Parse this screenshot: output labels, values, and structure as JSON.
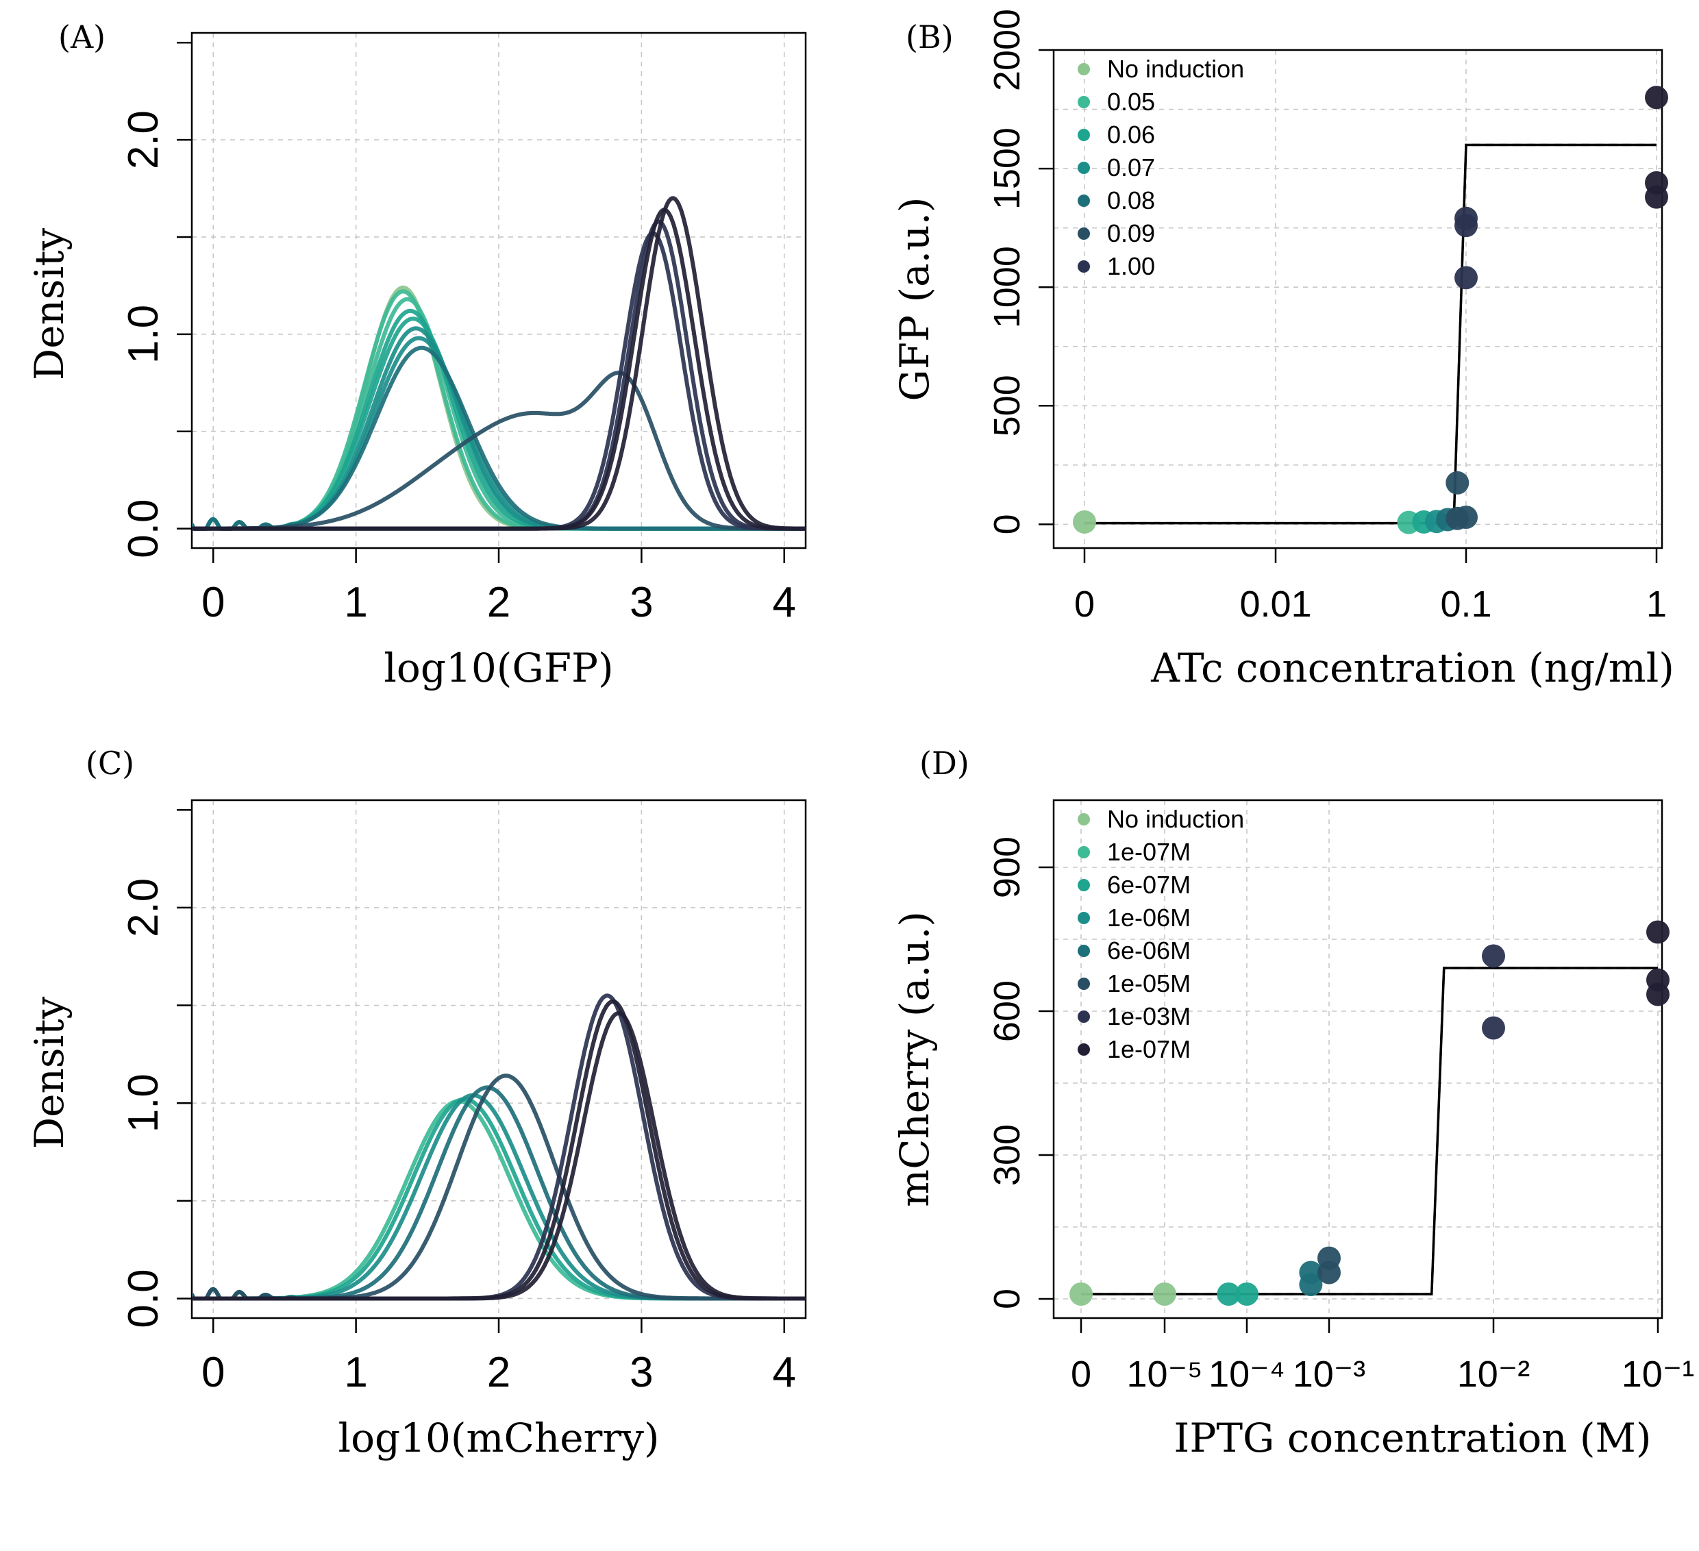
{
  "palette": [
    "#8cc58d",
    "#3dba96",
    "#1ea58f",
    "#1c8e8a",
    "#1d6f79",
    "#284f64",
    "#2b3350",
    "#221f34"
  ],
  "chart_data": [
    {
      "panel": "(A)",
      "type": "line",
      "xlabel": "log10(GFP)",
      "ylabel": "Density",
      "xlim": [
        -0.15,
        4.15
      ],
      "ylim": [
        -0.1,
        2.55
      ],
      "xticks": [
        "0",
        "1",
        "2",
        "3",
        "4"
      ],
      "yticks": [
        "0.0",
        "1.0",
        "2.0"
      ],
      "series": [
        {
          "group": 0,
          "peak": 1.33,
          "sd": 0.26,
          "height": 1.24
        },
        {
          "group": 1,
          "peak": 1.33,
          "sd": 0.27,
          "height": 1.22
        },
        {
          "group": 1,
          "peak": 1.36,
          "sd": 0.28,
          "height": 1.18
        },
        {
          "group": 2,
          "peak": 1.38,
          "sd": 0.29,
          "height": 1.12
        },
        {
          "group": 2,
          "peak": 1.4,
          "sd": 0.3,
          "height": 1.08
        },
        {
          "group": 3,
          "peak": 1.42,
          "sd": 0.3,
          "height": 1.03
        },
        {
          "group": 3,
          "peak": 1.44,
          "sd": 0.31,
          "height": 0.98
        },
        {
          "group": 4,
          "peak": 1.46,
          "sd": 0.32,
          "height": 0.93
        },
        {
          "group": 5,
          "peak": 2.9,
          "sd": 0.22,
          "height": 0.62,
          "shoulder": 0.4
        },
        {
          "group": 6,
          "peak": 3.08,
          "sd": 0.2,
          "height": 1.52
        },
        {
          "group": 6,
          "peak": 3.12,
          "sd": 0.2,
          "height": 1.58
        },
        {
          "group": 7,
          "peak": 3.16,
          "sd": 0.21,
          "height": 1.64
        },
        {
          "group": 7,
          "peak": 3.22,
          "sd": 0.21,
          "height": 1.7
        }
      ]
    },
    {
      "panel": "(B)",
      "type": "scatter",
      "xlabel": "ATc concentration (ng/ml)",
      "ylabel": "GFP (a.u.)",
      "xticks": [
        "0",
        "0.01",
        "0.1",
        "1"
      ],
      "yticks": [
        "0",
        "500",
        "1000",
        "1500",
        "2000"
      ],
      "ylim": [
        -100,
        2000
      ],
      "legend": [
        "No induction",
        "0.05",
        "0.06",
        "0.07",
        "0.08",
        "0.09",
        "1.00"
      ],
      "points": [
        {
          "x": 0,
          "y": 10,
          "group": 0
        },
        {
          "x": 0.05,
          "y": 8,
          "group": 1
        },
        {
          "x": 0.06,
          "y": 10,
          "group": 2
        },
        {
          "x": 0.07,
          "y": 12,
          "group": 3
        },
        {
          "x": 0.08,
          "y": 20,
          "group": 4
        },
        {
          "x": 0.09,
          "y": 25,
          "group": 5
        },
        {
          "x": 0.09,
          "y": 175,
          "group": 5
        },
        {
          "x": 0.1,
          "y": 30,
          "group": 5
        },
        {
          "x": 0.1,
          "y": 1040,
          "group": 6
        },
        {
          "x": 0.1,
          "y": 1260,
          "group": 6
        },
        {
          "x": 0.1,
          "y": 1290,
          "group": 6
        },
        {
          "x": 1,
          "y": 1800,
          "group": 7
        },
        {
          "x": 1,
          "y": 1440,
          "group": 7
        },
        {
          "x": 1,
          "y": 1380,
          "group": 7
        }
      ],
      "fit": {
        "low": 5,
        "high": 1600,
        "threshold": 0.1
      }
    },
    {
      "panel": "(C)",
      "type": "line",
      "xlabel": "log10(mCherry)",
      "ylabel": "Density",
      "xlim": [
        -0.15,
        4.15
      ],
      "ylim": [
        -0.1,
        2.55
      ],
      "xticks": [
        "0",
        "1",
        "2",
        "3",
        "4"
      ],
      "yticks": [
        "0.0",
        "1.0",
        "2.0"
      ],
      "series": [
        {
          "group": 1,
          "peak": 1.72,
          "sd": 0.36,
          "height": 1.01
        },
        {
          "group": 2,
          "peak": 1.76,
          "sd": 0.36,
          "height": 1.02
        },
        {
          "group": 3,
          "peak": 1.82,
          "sd": 0.36,
          "height": 1.04
        },
        {
          "group": 4,
          "peak": 1.92,
          "sd": 0.35,
          "height": 1.08
        },
        {
          "group": 5,
          "peak": 2.05,
          "sd": 0.34,
          "height": 1.14
        },
        {
          "group": 6,
          "peak": 2.76,
          "sd": 0.25,
          "height": 1.55
        },
        {
          "group": 7,
          "peak": 2.8,
          "sd": 0.25,
          "height": 1.52
        },
        {
          "group": 7,
          "peak": 2.84,
          "sd": 0.25,
          "height": 1.46
        }
      ]
    },
    {
      "panel": "(D)",
      "type": "scatter",
      "xlabel": "IPTG concentration (M)",
      "ylabel": "mCherry (a.u.)",
      "xticks": [
        "0",
        "10⁻⁵",
        "10⁻⁴",
        "10⁻³",
        "10⁻²",
        "10⁻¹"
      ],
      "yticks": [
        "0",
        "300",
        "600",
        "900"
      ],
      "ylim": [
        -40,
        1040
      ],
      "legend": [
        "No induction",
        "1e-07M",
        "6e-07M",
        "1e-06M",
        "6e-06M",
        "1e-05M",
        "1e-03M",
        "1e-07M"
      ],
      "points": [
        {
          "x": 0,
          "y": 10,
          "group": 0
        },
        {
          "x": 1e-05,
          "y": 10,
          "group": 0
        },
        {
          "x": 6e-05,
          "y": 10,
          "group": 2
        },
        {
          "x": 0.0001,
          "y": 10,
          "group": 2
        },
        {
          "x": 0.0006,
          "y": 30,
          "group": 4
        },
        {
          "x": 0.0006,
          "y": 55,
          "group": 4
        },
        {
          "x": 0.001,
          "y": 55,
          "group": 5
        },
        {
          "x": 0.001,
          "y": 85,
          "group": 5
        },
        {
          "x": 0.01,
          "y": 715,
          "group": 6
        },
        {
          "x": 0.01,
          "y": 565,
          "group": 6
        },
        {
          "x": 0.1,
          "y": 765,
          "group": 7
        },
        {
          "x": 0.1,
          "y": 665,
          "group": 7
        },
        {
          "x": 0.1,
          "y": 635,
          "group": 7
        }
      ],
      "fit": {
        "low": 10,
        "high": 690,
        "threshold": 0.005
      }
    }
  ]
}
